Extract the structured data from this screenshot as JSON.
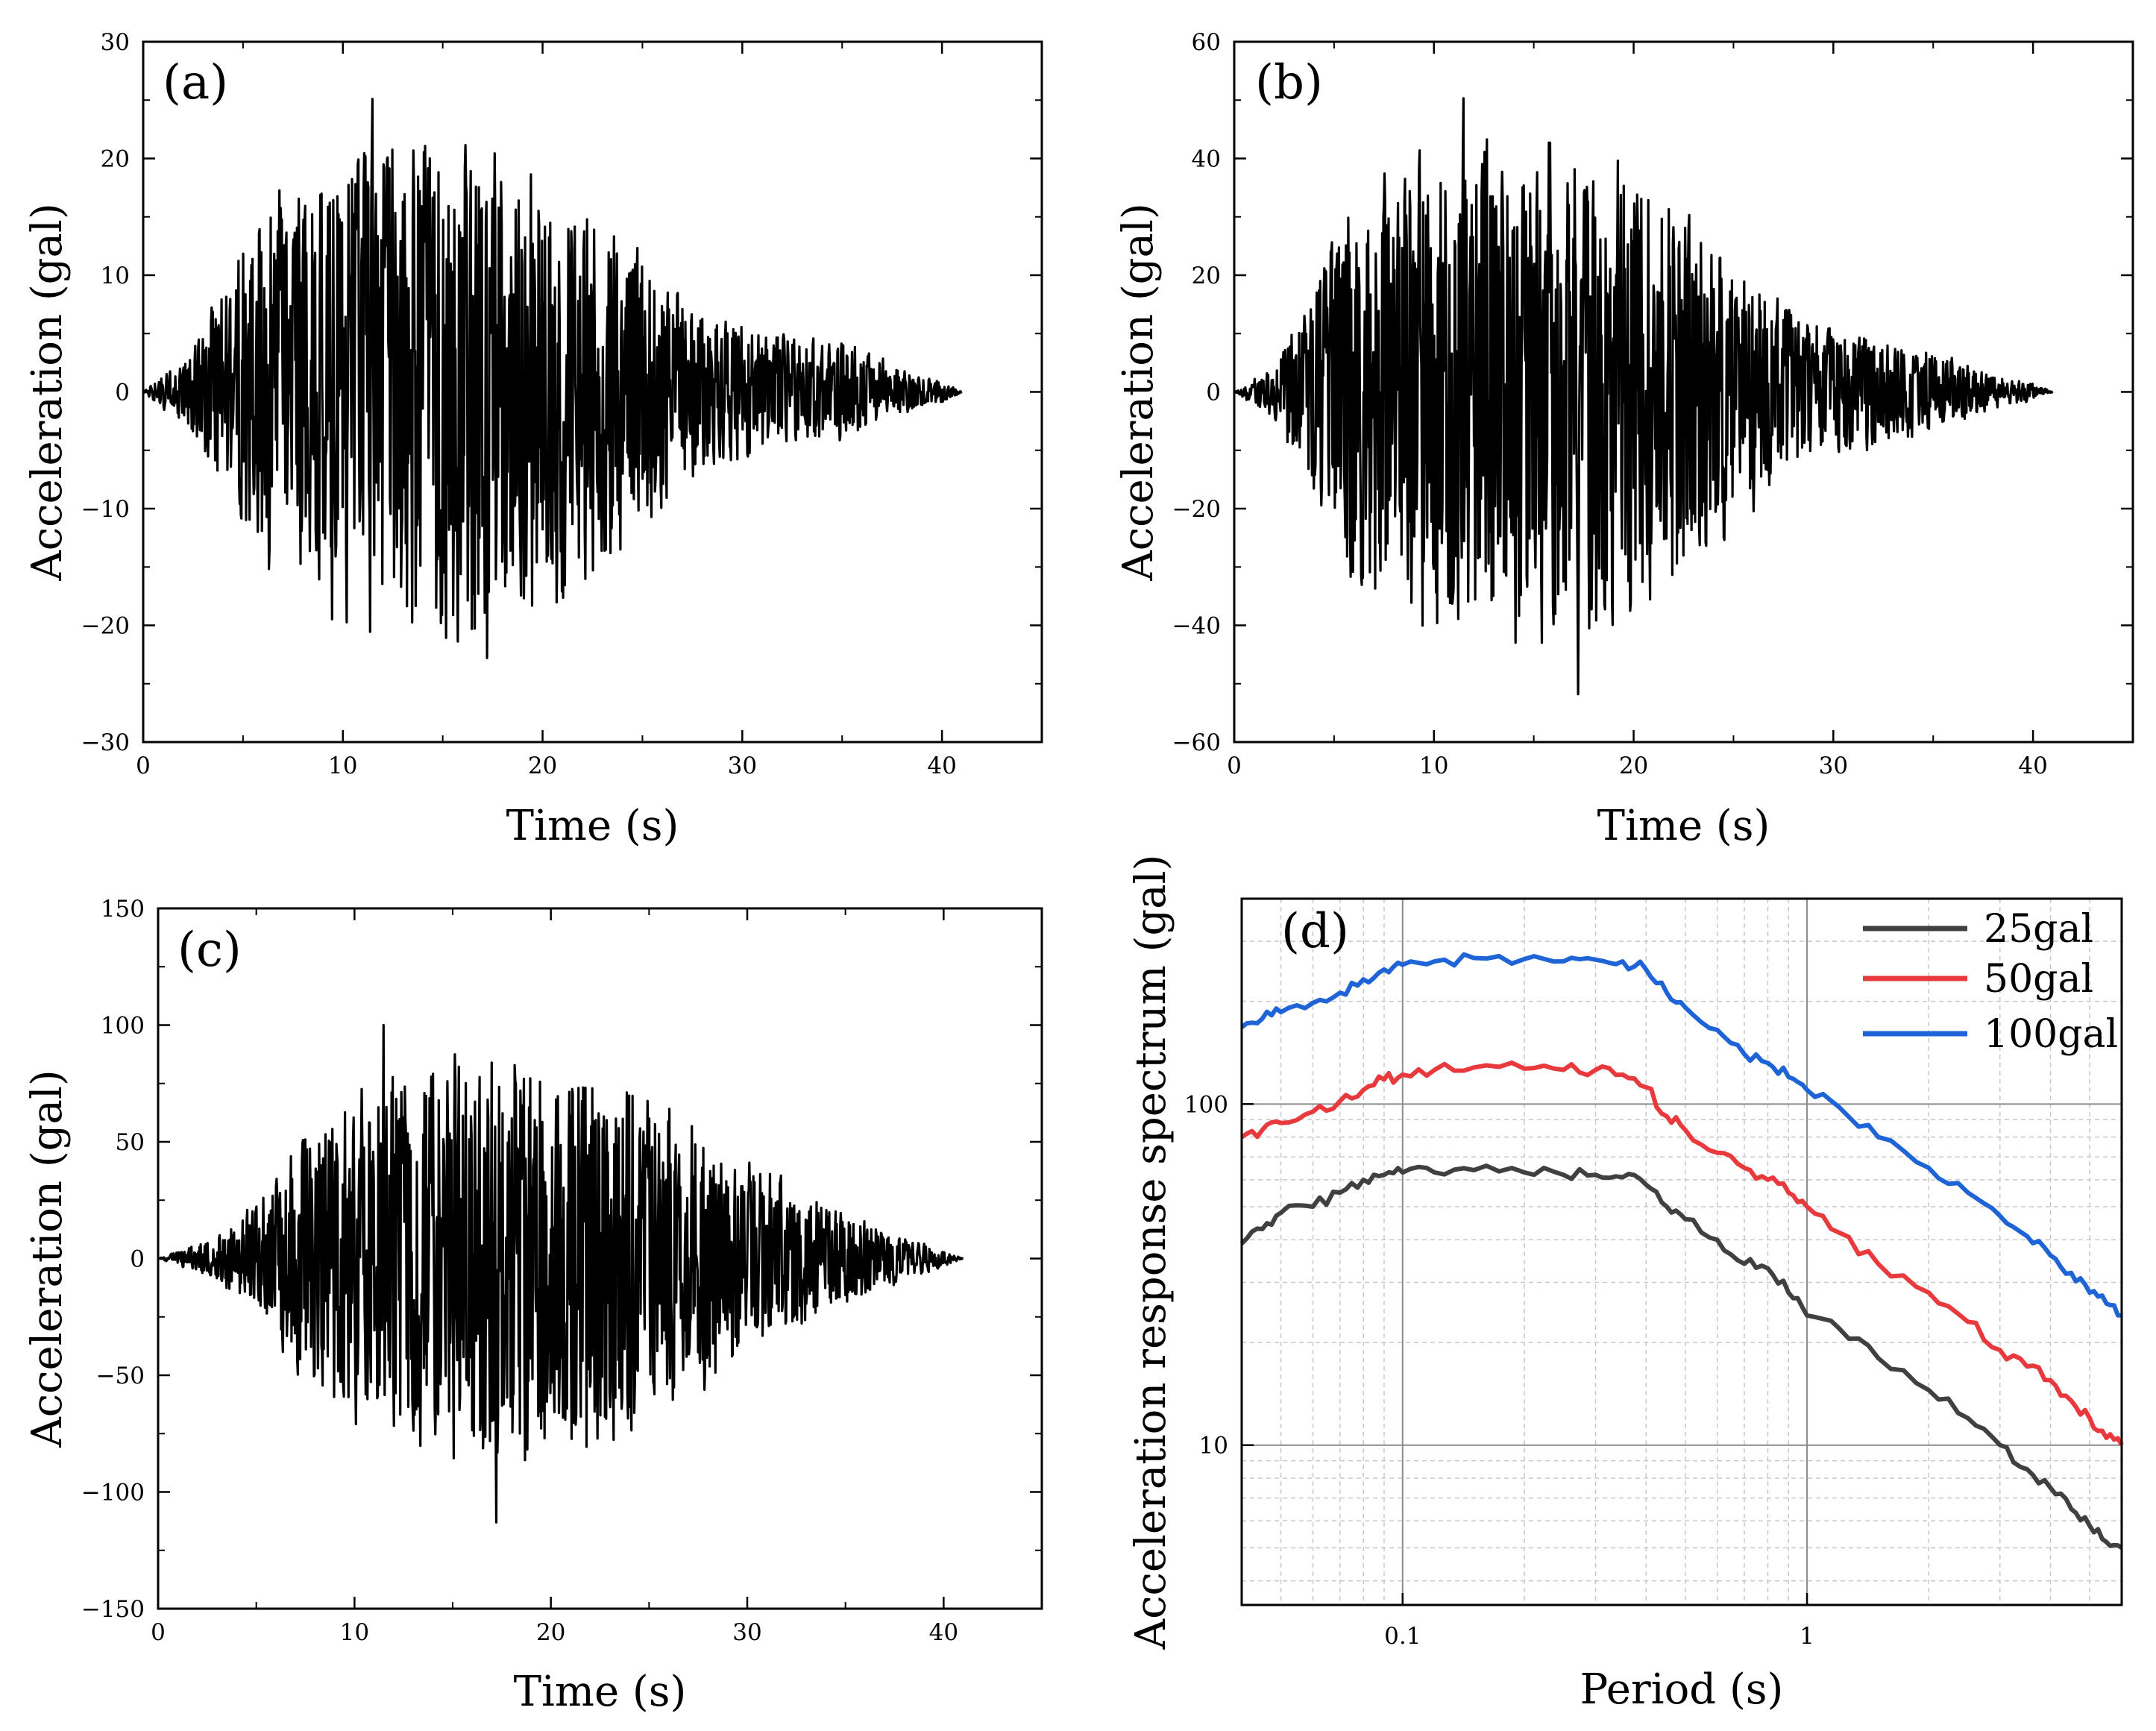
{
  "colors": {
    "background": "#ffffff",
    "axis": "#000000",
    "trace": "#000000",
    "grid_major": "#8c8c8c",
    "grid_minor": "#c8c8c8"
  },
  "chart_data": [
    {
      "id": "a",
      "type": "line",
      "panel_label": "(a)",
      "xlabel": "Time (s)",
      "ylabel": "Acceleration (gal)",
      "xlim": [
        0,
        45
      ],
      "ylim": [
        -30,
        30
      ],
      "x_ticks": [
        0,
        10,
        20,
        30,
        40
      ],
      "y_ticks": [
        -30,
        -20,
        -10,
        0,
        10,
        20,
        30
      ],
      "x_tick_labels": [
        "0",
        "10",
        "20",
        "30",
        "40"
      ],
      "y_tick_labels": [
        "−30",
        "−20",
        "−10",
        "0",
        "10",
        "20",
        "30"
      ],
      "grid": false,
      "signal": {
        "duration_s": 41,
        "peak_pos": 25.1,
        "peak_neg": -22.8,
        "envelope_time_s": [
          0,
          2,
          4,
          6,
          10,
          16,
          20,
          24,
          28,
          32,
          36,
          38,
          40,
          41
        ],
        "envelope_value": [
          0,
          3,
          9,
          17,
          21,
          23,
          20,
          14,
          7,
          5,
          4,
          2,
          1,
          0
        ]
      }
    },
    {
      "id": "b",
      "type": "line",
      "panel_label": "(b)",
      "xlabel": "Time (s)",
      "ylabel": "Acceleration (gal)",
      "xlim": [
        0,
        45
      ],
      "ylim": [
        -60,
        60
      ],
      "x_ticks": [
        0,
        10,
        20,
        30,
        40
      ],
      "y_ticks": [
        -60,
        -40,
        -20,
        0,
        20,
        40,
        60
      ],
      "x_tick_labels": [
        "0",
        "10",
        "20",
        "30",
        "40"
      ],
      "y_tick_labels": [
        "−60",
        "−40",
        "−20",
        "0",
        "20",
        "40",
        "60"
      ],
      "grid": false,
      "signal": {
        "duration_s": 41,
        "peak_pos": 50.3,
        "peak_neg": -51.8,
        "envelope_time_s": [
          0,
          2,
          4,
          6,
          10,
          16,
          20,
          24,
          28,
          32,
          36,
          38,
          40,
          41
        ],
        "envelope_value": [
          0,
          5,
          20,
          35,
          44,
          46,
          40,
          28,
          14,
          10,
          6,
          3,
          1.5,
          0
        ]
      }
    },
    {
      "id": "c",
      "type": "line",
      "panel_label": "(c)",
      "xlabel": "Time (s)",
      "ylabel": "Acceleration (gal)",
      "xlim": [
        0,
        45
      ],
      "ylim": [
        -150,
        150
      ],
      "x_ticks": [
        0,
        10,
        20,
        30,
        40
      ],
      "y_ticks": [
        -150,
        -100,
        -50,
        0,
        50,
        100,
        150
      ],
      "x_tick_labels": [
        "0",
        "10",
        "20",
        "30",
        "40"
      ],
      "y_tick_labels": [
        "−150",
        "−100",
        "−50",
        "0",
        "50",
        "100",
        "150"
      ],
      "grid": false,
      "signal": {
        "duration_s": 41,
        "peak_pos": 100,
        "peak_neg": -113,
        "envelope_time_s": [
          0,
          3,
          5,
          8,
          12,
          18,
          22,
          26,
          30,
          34,
          38,
          41
        ],
        "envelope_value": [
          0,
          10,
          25,
          60,
          85,
          95,
          90,
          70,
          45,
          25,
          10,
          0
        ]
      }
    },
    {
      "id": "d",
      "type": "line",
      "panel_label": "(d)",
      "xlabel": "Period (s)",
      "ylabel": "Acceleration response spectrum (gal)",
      "x_scale": "log",
      "y_scale": "log",
      "xlim": [
        0.04,
        6
      ],
      "ylim": [
        3.4,
        400
      ],
      "x_ticks": [
        0.1,
        1
      ],
      "y_ticks": [
        10,
        100
      ],
      "x_tick_labels": [
        "0.1",
        "1"
      ],
      "y_tick_labels": [
        "10",
        "100"
      ],
      "grid": true,
      "legend_position": "top-right",
      "series": [
        {
          "name": "25gal",
          "color": "#404040",
          "x": [
            0.04,
            0.045,
            0.05,
            0.06,
            0.07,
            0.08,
            0.09,
            0.1,
            0.12,
            0.15,
            0.2,
            0.25,
            0.3,
            0.35,
            0.4,
            0.45,
            0.5,
            0.6,
            0.7,
            0.8,
            0.9,
            1.0,
            1.2,
            1.5,
            2.0,
            2.5,
            3.0,
            3.5,
            4.0,
            4.5,
            5.0,
            5.5,
            6.0
          ],
          "y": [
            39,
            43,
            48,
            50,
            55,
            60,
            62,
            63,
            63,
            64,
            63,
            62,
            62,
            61,
            58,
            50,
            46,
            40,
            34,
            33,
            28,
            24,
            22,
            18,
            14.5,
            12,
            10,
            8.5,
            7.5,
            6.5,
            5.8,
            5.2,
            5.0
          ]
        },
        {
          "name": "50gal",
          "color": "#e8393d",
          "x": [
            0.04,
            0.045,
            0.05,
            0.06,
            0.07,
            0.08,
            0.09,
            0.1,
            0.12,
            0.15,
            0.2,
            0.25,
            0.3,
            0.35,
            0.4,
            0.45,
            0.5,
            0.6,
            0.7,
            0.8,
            0.9,
            1.0,
            1.2,
            1.5,
            2.0,
            2.5,
            3.0,
            3.5,
            4.0,
            4.5,
            5.0,
            5.5,
            6.0
          ],
          "y": [
            80,
            84,
            88,
            95,
            102,
            110,
            118,
            122,
            126,
            128,
            127,
            126,
            126,
            122,
            112,
            92,
            84,
            72,
            65,
            60,
            55,
            50,
            42,
            34,
            28,
            23,
            19,
            17,
            15.5,
            13.5,
            12,
            10.5,
            10
          ]
        },
        {
          "name": "100gal",
          "color": "#1f64d6",
          "x": [
            0.04,
            0.045,
            0.05,
            0.06,
            0.07,
            0.08,
            0.09,
            0.1,
            0.12,
            0.15,
            0.2,
            0.25,
            0.3,
            0.35,
            0.4,
            0.45,
            0.5,
            0.6,
            0.7,
            0.8,
            0.9,
            1.0,
            1.2,
            1.5,
            2.0,
            2.5,
            3.0,
            3.5,
            4.0,
            4.5,
            5.0,
            5.5,
            6.0
          ],
          "y": [
            168,
            178,
            186,
            198,
            212,
            232,
            248,
            256,
            262,
            268,
            266,
            262,
            265,
            262,
            248,
            212,
            192,
            165,
            140,
            132,
            120,
            110,
            98,
            80,
            65,
            55,
            47,
            41,
            36,
            32,
            28,
            26,
            24
          ]
        }
      ]
    }
  ]
}
